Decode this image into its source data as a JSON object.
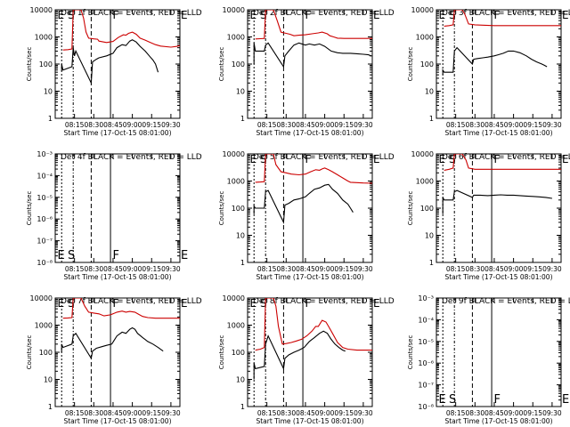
{
  "chart_data": [
    {
      "type": "line",
      "title": "Det 1f BLACK = Events, RED = LLD",
      "xlabel": "Start Time (17-Oct-15 08:01:00)",
      "ylabel": "Counts/sec",
      "y_scale": "log",
      "ylim": [
        1,
        10000
      ],
      "y_ticks": [
        "1",
        "10",
        "100",
        "1000",
        "10000"
      ],
      "x_ticks": [
        "08:15",
        "08:30",
        "08:45",
        "09:00",
        "09:15",
        "09:30"
      ],
      "markers": [
        "E",
        "S",
        "F",
        "E"
      ],
      "series": [
        {
          "color": "#000000",
          "x": [
            8.82,
            9.15,
            9.58,
            9.63,
            9.78,
            9.9,
            9.95,
            10.3
          ],
          "y": [
            null,
            null,
            null,
            null,
            null,
            null,
            null,
            null
          ]
        },
        {
          "color": "#cc0000",
          "x": [],
          "y": []
        }
      ]
    },
    {
      "type": "line",
      "title": "Det 2f BLACK = Events, RED = LLD",
      "xlabel": "Start Time (17-Oct-15 08:01:00)",
      "ylabel": "Counts/sec",
      "y_scale": "log",
      "ylim": [
        1,
        10000
      ],
      "y_ticks": [
        "1",
        "10",
        "100",
        "1000",
        "10000"
      ],
      "x_ticks": [
        "08:15",
        "08:30",
        "08:45",
        "09:00",
        "09:15",
        "09:30"
      ],
      "markers": [
        "E",
        "S",
        "F",
        "E"
      ],
      "series": []
    },
    {
      "type": "line",
      "title": "Det 3f BLACK = Events, RED = LLD",
      "xlabel": "Start Time (17-Oct-15 08:01:00)",
      "ylabel": "Counts/sec",
      "y_scale": "log",
      "ylim": [
        1,
        10000
      ],
      "y_ticks": [
        "1",
        "10",
        "100",
        "1000",
        "10000"
      ],
      "x_ticks": [
        "08:15",
        "08:30",
        "08:45",
        "09:00",
        "09:15",
        "09:30"
      ],
      "markers": [
        "E",
        "S",
        "F",
        "E"
      ],
      "series": []
    },
    {
      "type": "line",
      "title": "Det 4f BLACK = Events, RED = LLD",
      "xlabel": "Start Time (17-Oct-15 08:01:00)",
      "ylabel": "Counts/sec",
      "y_scale": "log",
      "ylim": [
        1e-08,
        0.001
      ],
      "y_ticks": [
        "10⁻⁸",
        "10⁻⁷",
        "10⁻⁶",
        "10⁻⁵",
        "10⁻⁴",
        "10⁻³"
      ],
      "x_ticks": [
        "08:15",
        "08:30",
        "08:45",
        "09:00",
        "09:15",
        "09:30"
      ],
      "markers": [
        "E",
        "S",
        "F",
        "E"
      ],
      "series": []
    },
    {
      "type": "line",
      "title": "Det 5f BLACK = Events, RED = LLD",
      "xlabel": "Start Time (17-Oct-15 08:01:00)",
      "ylabel": "Counts/sec",
      "y_scale": "log",
      "ylim": [
        1,
        10000
      ],
      "y_ticks": [
        "1",
        "10",
        "100",
        "1000",
        "10000"
      ],
      "x_ticks": [
        "08:15",
        "08:30",
        "08:45",
        "09:00",
        "09:15",
        "09:30"
      ],
      "markers": [
        "E",
        "S",
        "F",
        "E"
      ],
      "series": []
    },
    {
      "type": "line",
      "title": "Det 6f BLACK = Events, RED = LLD",
      "xlabel": "Start Time (17-Oct-15 08:01:00)",
      "ylabel": "Counts/sec",
      "y_scale": "log",
      "ylim": [
        1,
        10000
      ],
      "y_ticks": [
        "1",
        "10",
        "100",
        "1000",
        "10000"
      ],
      "x_ticks": [
        "08:15",
        "08:30",
        "08:45",
        "09:00",
        "09:15",
        "09:30"
      ],
      "markers": [
        "E",
        "S",
        "F",
        "E"
      ],
      "series": []
    },
    {
      "type": "line",
      "title": "Det 7f BLACK = Events, RED = LLD",
      "xlabel": "Start Time (17-Oct-15 08:01:00)",
      "ylabel": "Counts/sec",
      "y_scale": "log",
      "ylim": [
        1,
        10000
      ],
      "y_ticks": [
        "1",
        "10",
        "100",
        "1000",
        "10000"
      ],
      "x_ticks": [
        "08:15",
        "08:30",
        "08:45",
        "09:00",
        "09:15",
        "09:30"
      ],
      "markers": [
        "E",
        "S",
        "F",
        "E"
      ],
      "series": []
    },
    {
      "type": "line",
      "title": "Det 8f BLACK = Events, RED = LLD",
      "xlabel": "Start Time (17-Oct-15 08:01:00)",
      "ylabel": "Counts/sec",
      "y_scale": "log",
      "ylim": [
        1,
        10000
      ],
      "y_ticks": [
        "1",
        "10",
        "100",
        "1000",
        "10000"
      ],
      "x_ticks": [
        "08:15",
        "08:30",
        "08:45",
        "09:00",
        "09:15",
        "09:30"
      ],
      "markers": [
        "E",
        "S",
        "F",
        "E"
      ],
      "series": []
    },
    {
      "type": "line",
      "title": "Det 9f BLACK = Events, RED = LLD",
      "xlabel": "Start Time (17-Oct-15 08:01:00)",
      "ylabel": "Counts/sec",
      "y_scale": "log",
      "ylim": [
        1e-08,
        0.001
      ],
      "y_ticks": [
        "10⁻⁸",
        "10⁻⁷",
        "10⁻⁶",
        "10⁻⁵",
        "10⁻⁴",
        "10⁻³"
      ],
      "x_ticks": [
        "08:15",
        "08:30",
        "08:45",
        "09:00",
        "09:15",
        "09:30"
      ],
      "markers": [
        "E",
        "S",
        "F",
        "E"
      ],
      "series": []
    }
  ]
}
